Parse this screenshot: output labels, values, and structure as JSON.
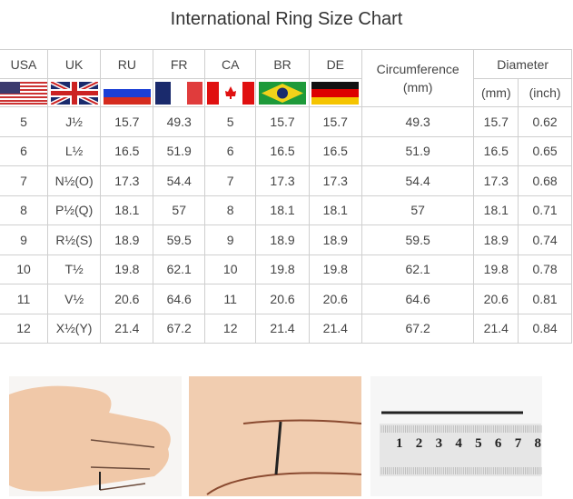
{
  "title": "International Ring Size Chart",
  "headers": {
    "usa": "USA",
    "uk": "UK",
    "ru": "RU",
    "fr": "FR",
    "ca": "CA",
    "br": "BR",
    "de": "DE",
    "circumference": "Circumference",
    "circumference_unit": "(mm)",
    "diameter": "Diameter",
    "diameter_mm": "(mm)",
    "diameter_inch": "(inch)"
  },
  "flags": [
    "us-flag",
    "uk-flag",
    "russia-flag",
    "france-flag",
    "canada-flag",
    "brazil-flag",
    "germany-flag"
  ],
  "rows": [
    [
      "5",
      "J½",
      "15.7",
      "49.3",
      "5",
      "15.7",
      "15.7",
      "49.3",
      "15.7",
      "0.62"
    ],
    [
      "6",
      "L½",
      "16.5",
      "51.9",
      "6",
      "16.5",
      "16.5",
      "51.9",
      "16.5",
      "0.65"
    ],
    [
      "7",
      "N½(O)",
      "17.3",
      "54.4",
      "7",
      "17.3",
      "17.3",
      "54.4",
      "17.3",
      "0.68"
    ],
    [
      "8",
      "P½(Q)",
      "18.1",
      "57",
      "8",
      "18.1",
      "18.1",
      "57",
      "18.1",
      "0.71"
    ],
    [
      "9",
      "R½(S)",
      "18.9",
      "59.5",
      "9",
      "18.9",
      "18.9",
      "59.5",
      "18.9",
      "0.74"
    ],
    [
      "10",
      "T½",
      "19.8",
      "62.1",
      "10",
      "19.8",
      "19.8",
      "62.1",
      "19.8",
      "0.78"
    ],
    [
      "11",
      "V½",
      "20.6",
      "64.6",
      "11",
      "20.6",
      "20.6",
      "64.6",
      "20.6",
      "0.81"
    ],
    [
      "12",
      "X½(Y)",
      "21.4",
      "67.2",
      "12",
      "21.4",
      "21.4",
      "67.2",
      "21.4",
      "0.84"
    ]
  ],
  "ruler_numbers": [
    "1",
    "2",
    "3",
    "4",
    "5",
    "6",
    "7",
    "8"
  ]
}
